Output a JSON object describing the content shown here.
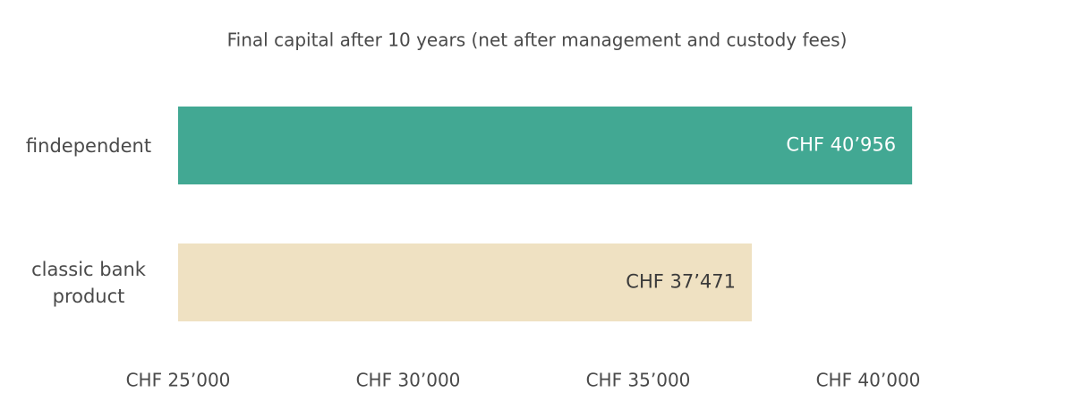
{
  "chart_data": {
    "type": "hbar",
    "title": "Final capital after 10 years (net after management and custody fees)",
    "categories": [
      "findependent",
      "classic bank product"
    ],
    "values": [
      40956,
      37471
    ],
    "value_labels": [
      "CHF 40’956",
      "CHF 37’471"
    ],
    "colors": [
      "#42a893",
      "#efe1c2"
    ],
    "label_colors": [
      "#ffffff",
      "#3a3a3a"
    ],
    "xlim": [
      25000,
      42000
    ],
    "xticks": [
      {
        "value": 25000,
        "label": "CHF 25’000"
      },
      {
        "value": 30000,
        "label": "CHF 30’000"
      },
      {
        "value": 35000,
        "label": "CHF 35’000"
      },
      {
        "value": 40000,
        "label": "CHF 40’000"
      }
    ],
    "grid": false
  }
}
